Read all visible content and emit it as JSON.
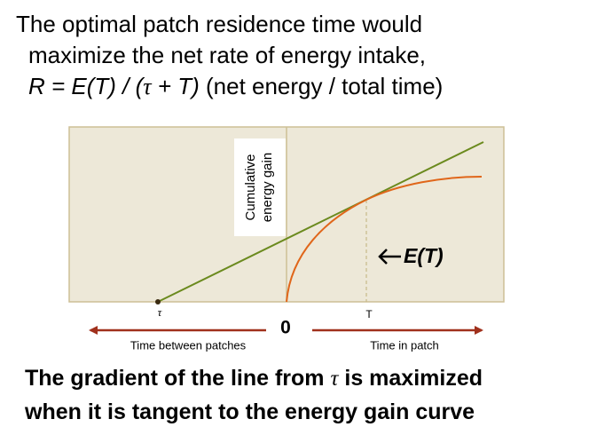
{
  "title": {
    "line1": "The optimal patch residence time would",
    "line2": "maximize the net rate of energy intake,",
    "line3": {
      "formula_a": "R = E(T) / (",
      "tau": "τ",
      "formula_b": " + T)",
      "rest": " (net energy / total time)"
    }
  },
  "diagram": {
    "y_axis_label": {
      "line1": "Cumulative",
      "line2": "energy gain"
    },
    "curve_label": "E(T)",
    "tau_label": "τ",
    "origin_label": "0",
    "t_label": "T",
    "left_arrow_label": "Time between patches",
    "right_arrow_label": "Time in patch"
  },
  "conclusion": {
    "line1_a": "The gradient of the line from ",
    "tau": "τ",
    "line1_b": " is maximized",
    "line2": "when it is tangent to the energy gain curve"
  }
}
